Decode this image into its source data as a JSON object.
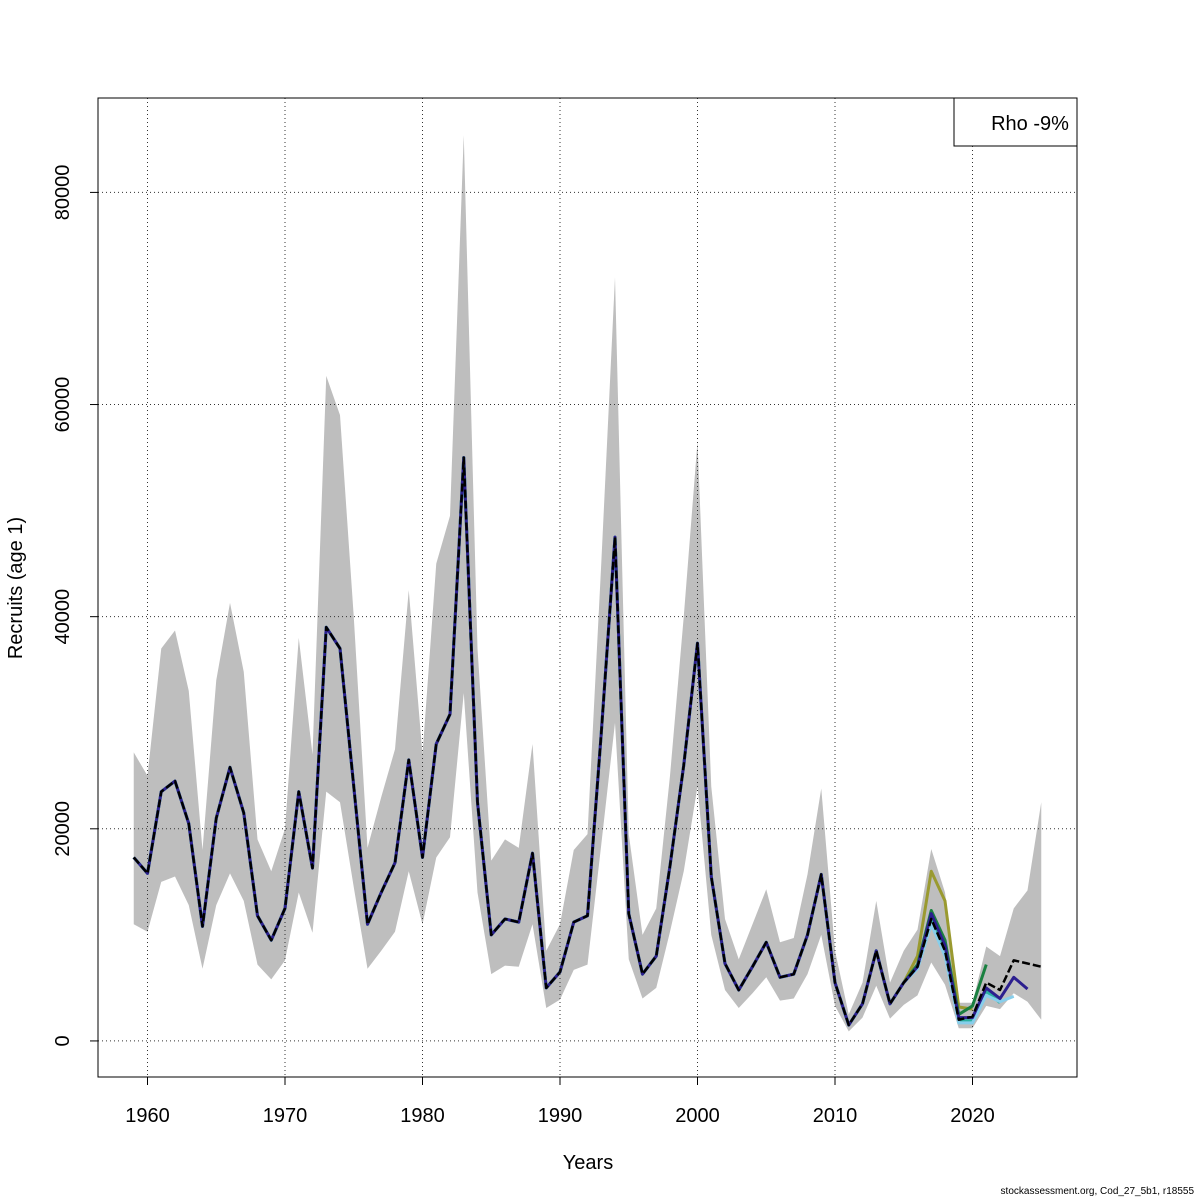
{
  "chart_data": {
    "type": "line",
    "title": "",
    "xlabel": "Years",
    "ylabel": "Recruits (age 1)",
    "xlim": [
      1956.4,
      2027.6
    ],
    "ylim": [
      -3400,
      88900
    ],
    "xticks": [
      1960,
      1970,
      1980,
      1990,
      2000,
      2010,
      2020
    ],
    "xtick_labels": [
      "1960",
      "1970",
      "1980",
      "1990",
      "2000",
      "2010",
      "2020"
    ],
    "yticks": [
      0,
      20000,
      40000,
      60000,
      80000
    ],
    "ytick_labels": [
      "0",
      "20000",
      "40000",
      "60000",
      "80000"
    ],
    "grid": true,
    "legend": {
      "text": "Rho -9%",
      "placement": "top-right"
    },
    "confidence_band": {
      "color": "#bebebe",
      "x_start": 1959,
      "upper": [
        27200,
        25000,
        37000,
        38700,
        33000,
        18000,
        34000,
        41300,
        34800,
        19000,
        16000,
        20000,
        38000,
        27000,
        62700,
        59000,
        40000,
        18200,
        23000,
        27500,
        42500,
        27000,
        45000,
        49500,
        85400,
        37000,
        17000,
        19000,
        18200,
        28000,
        8500,
        11000,
        18000,
        19500,
        45000,
        72000,
        19500,
        10000,
        12500,
        25000,
        40000,
        56500,
        24000,
        11500,
        7700,
        11000,
        14300,
        9300,
        9700,
        15700,
        23800,
        8500,
        2500,
        5500,
        13200,
        5500,
        8500,
        10500,
        18100,
        14000,
        3600,
        3600,
        8900,
        8000,
        12500,
        14200,
        22500
      ],
      "lower": [
        11000,
        10300,
        15000,
        15500,
        12800,
        6800,
        12800,
        15800,
        13200,
        7200,
        5800,
        7600,
        14000,
        10200,
        23500,
        22500,
        14500,
        6800,
        8500,
        10300,
        16000,
        11000,
        17300,
        19200,
        32800,
        14000,
        6300,
        7100,
        7000,
        11000,
        3100,
        3900,
        6700,
        7200,
        18500,
        30000,
        7700,
        4000,
        5000,
        10300,
        16000,
        24000,
        10000,
        4800,
        3100,
        4500,
        6000,
        3800,
        4000,
        6300,
        10000,
        3300,
        900,
        2200,
        5200,
        2100,
        3400,
        4300,
        7400,
        5300,
        1200,
        1200,
        3300,
        3000,
        4500,
        3700,
        2000
      ]
    },
    "series": [
      {
        "color": "#000000",
        "style": "dashed",
        "x_start": 1959,
        "values": [
          17300,
          15800,
          23500,
          24500,
          20500,
          10800,
          21000,
          25800,
          21500,
          11800,
          9500,
          12500,
          23500,
          16300,
          39000,
          37000,
          24000,
          11000,
          14000,
          16800,
          26500,
          17300,
          28000,
          30800,
          55000,
          22500,
          10000,
          11500,
          11200,
          17700,
          5000,
          6500,
          11200,
          11800,
          29000,
          47500,
          12000,
          6300,
          8000,
          16500,
          26000,
          37500,
          15500,
          7300,
          4800,
          7000,
          9300,
          6000,
          6300,
          10000,
          15700,
          5500,
          1500,
          3500,
          8500,
          3500,
          5500,
          7000,
          11500,
          8500,
          2000,
          2300,
          5500,
          4800,
          7600,
          7300,
          7000
        ]
      },
      {
        "color": "#2c1f8f",
        "style": "solid",
        "tail_x": [
          2016,
          2017,
          2018,
          2019,
          2020,
          2021,
          2022,
          2023,
          2024
        ],
        "tail_values": [
          7000,
          12000,
          9000,
          2200,
          2200,
          5000,
          4000,
          6000,
          4900
        ]
      },
      {
        "color": "#87ceeb",
        "style": "solid",
        "tail_x": [
          2016,
          2017,
          2018,
          2019,
          2020,
          2021,
          2022,
          2023
        ],
        "tail_values": [
          6800,
          11000,
          8000,
          1700,
          1700,
          4300,
          3700,
          4200
        ]
      },
      {
        "color": "#2ab0a0",
        "style": "solid",
        "tail_x": [
          2016,
          2017,
          2018,
          2019,
          2020,
          2021,
          2022
        ],
        "tail_values": [
          6900,
          11300,
          8300,
          1900,
          1900,
          4700,
          3600
        ]
      },
      {
        "color": "#1a8040",
        "style": "solid",
        "tail_x": [
          2016,
          2017,
          2018,
          2019,
          2020,
          2021
        ],
        "tail_values": [
          7200,
          12300,
          9500,
          2500,
          3300,
          7200
        ]
      },
      {
        "color": "#9a9a30",
        "style": "solid",
        "tail_x": [
          2016,
          2017,
          2018,
          2019,
          2020
        ],
        "tail_values": [
          8000,
          16000,
          13200,
          3200,
          3000
        ]
      }
    ]
  },
  "footer": "stockassessment.org, Cod_27_5b1, r18555"
}
